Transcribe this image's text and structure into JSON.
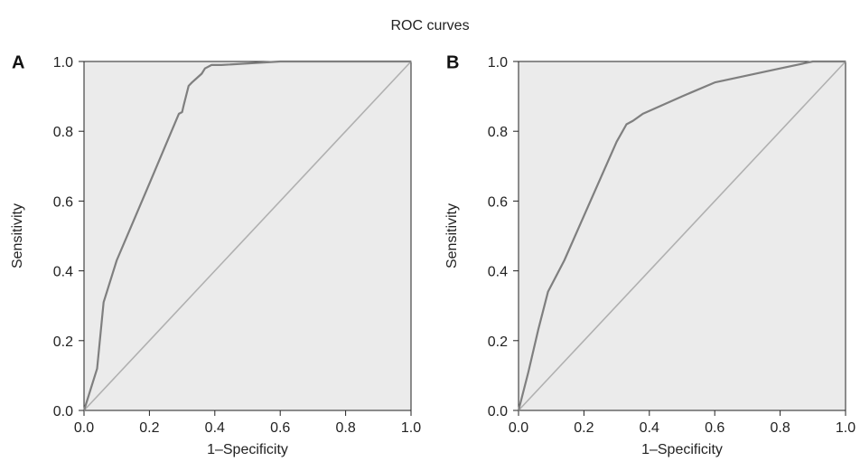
{
  "figure": {
    "title": "ROC curves"
  },
  "chart_data": [
    {
      "panel": "A",
      "type": "line",
      "xlabel": "1–Specificity",
      "ylabel": "Sensitivity",
      "xlim": [
        0,
        1
      ],
      "ylim": [
        0,
        1
      ],
      "xticks": [
        "0.0",
        "0.2",
        "0.4",
        "0.6",
        "0.8",
        "1.0"
      ],
      "yticks": [
        "0.0",
        "0.2",
        "0.4",
        "0.6",
        "0.8",
        "1.0"
      ],
      "grid": false,
      "background": "#ebebeb",
      "series": [
        {
          "color": "#7f7f7f",
          "x": [
            0.0,
            0.04,
            0.06,
            0.07,
            0.1,
            0.2,
            0.29,
            0.3,
            0.305,
            0.32,
            0.33,
            0.36,
            0.37,
            0.39,
            0.42,
            0.6,
            1.0
          ],
          "y": [
            0.0,
            0.12,
            0.31,
            0.34,
            0.43,
            0.65,
            0.85,
            0.855,
            0.875,
            0.93,
            0.94,
            0.965,
            0.98,
            0.99,
            0.99,
            1.0,
            1.0
          ]
        },
        {
          "color": "#b0b0b0",
          "x": [
            0,
            1
          ],
          "y": [
            0,
            1
          ]
        }
      ]
    },
    {
      "panel": "B",
      "type": "line",
      "xlabel": "1–Specificity",
      "ylabel": "Sensitivity",
      "xlim": [
        0,
        1
      ],
      "ylim": [
        0,
        1
      ],
      "xticks": [
        "0.0",
        "0.2",
        "0.4",
        "0.6",
        "0.8",
        "1.0"
      ],
      "yticks": [
        "0.0",
        "0.2",
        "0.4",
        "0.6",
        "0.8",
        "1.0"
      ],
      "grid": false,
      "background": "#ebebeb",
      "series": [
        {
          "color": "#7f7f7f",
          "x": [
            0.0,
            0.03,
            0.06,
            0.09,
            0.14,
            0.22,
            0.3,
            0.33,
            0.35,
            0.38,
            0.5,
            0.6,
            0.65,
            0.8,
            0.9,
            1.0
          ],
          "y": [
            0.0,
            0.11,
            0.23,
            0.34,
            0.43,
            0.6,
            0.77,
            0.82,
            0.83,
            0.85,
            0.9,
            0.94,
            0.95,
            0.98,
            1.0,
            1.0
          ]
        },
        {
          "color": "#b0b0b0",
          "x": [
            0,
            1
          ],
          "y": [
            0,
            1
          ]
        }
      ]
    }
  ]
}
